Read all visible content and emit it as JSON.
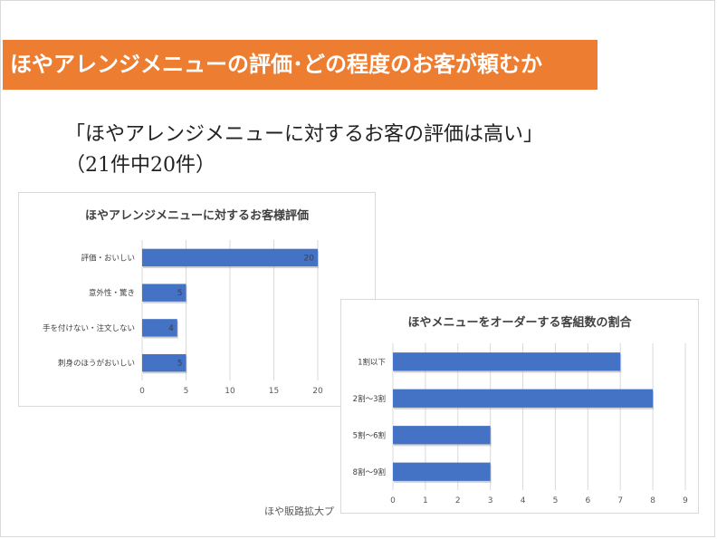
{
  "slide": {
    "title": "ほやアレンジメニューの評価･どの程度のお客が頼むか",
    "quote": "「ほやアレンジメニューに対するお客の評価は高い」",
    "count": "（21件中20件）",
    "footer": "ほや販路拡大プ"
  },
  "colors": {
    "banner": "#ed7d31",
    "bar": "#4472c4"
  },
  "chart_data": [
    {
      "type": "bar",
      "orientation": "horizontal",
      "title": "ほやアレンジメニューに対するお客様評価",
      "categories": [
        "評価・おいしい",
        "意外性・驚き",
        "手を付けない・注文しない",
        "刺身のほうがおいしい"
      ],
      "values": [
        20,
        5,
        4,
        5
      ],
      "data_labels": true,
      "xlim": [
        0,
        20
      ],
      "xticks": [
        0,
        5,
        10,
        15,
        20
      ],
      "grid": true
    },
    {
      "type": "bar",
      "orientation": "horizontal",
      "title": "ほやメニューをオーダーする客組数の割合",
      "categories": [
        "1割以下",
        "2割～3割",
        "5割～6割",
        "8割～9割"
      ],
      "values": [
        7,
        8,
        3,
        3
      ],
      "data_labels": false,
      "xlim": [
        0,
        9
      ],
      "xticks": [
        0,
        1,
        2,
        3,
        4,
        5,
        6,
        7,
        8,
        9
      ],
      "grid": true
    }
  ]
}
